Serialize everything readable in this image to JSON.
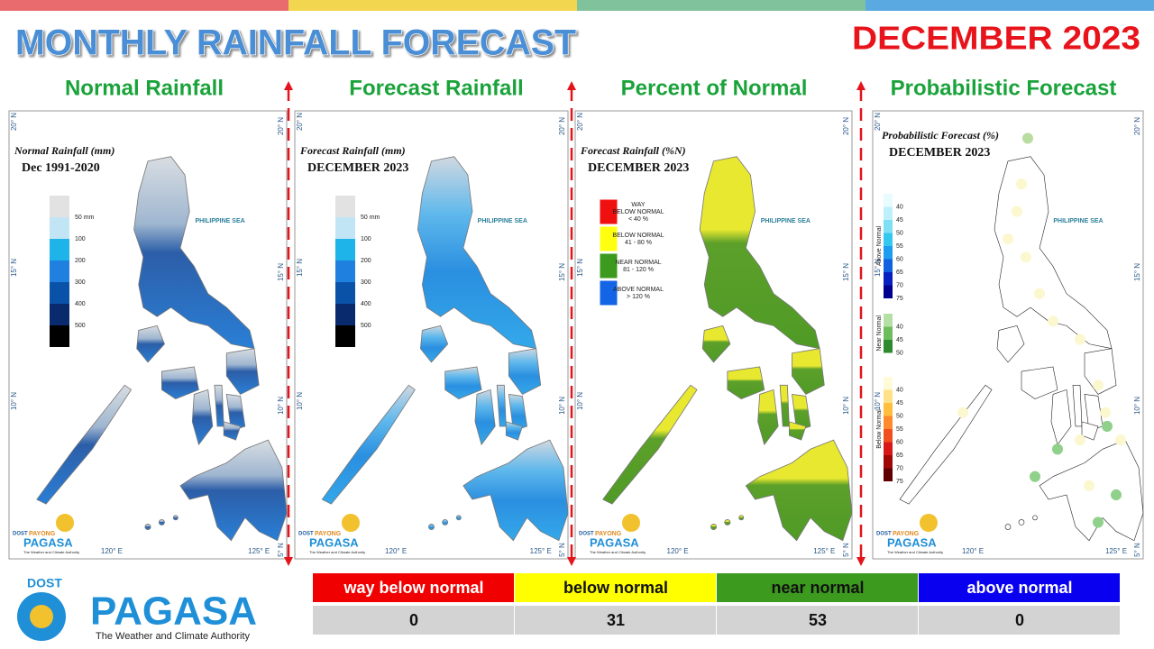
{
  "header": {
    "title": "MONTHLY RAINFALL FORECAST",
    "period": "DECEMBER 2023"
  },
  "panels": [
    {
      "heading": "Normal Rainfall",
      "map_title": "Normal Rainfall (mm)",
      "map_subtitle": "Dec 1991-2020",
      "legend": [
        "50 mm",
        "100",
        "200",
        "300",
        "400",
        "500"
      ]
    },
    {
      "heading": "Forecast Rainfall",
      "map_title": "Forecast Rainfall (mm)",
      "map_subtitle": "DECEMBER 2023",
      "legend": [
        "50 mm",
        "100",
        "200",
        "300",
        "400",
        "500"
      ]
    },
    {
      "heading": "Percent of Normal",
      "map_title": "Forecast Rainfall (%N)",
      "map_subtitle": "DECEMBER 2023",
      "legend": [
        [
          "WAY",
          "BELOW NORMAL",
          "< 40 %"
        ],
        [
          "BELOW NORMAL",
          "41 - 80 %"
        ],
        [
          "NEAR NORMAL",
          "81 - 120 %"
        ],
        [
          "ABOVE NORMAL",
          "> 120 %"
        ]
      ]
    },
    {
      "heading": "Probabilistic Forecast",
      "map_title": "Probabilistic Forecast (%)",
      "map_subtitle": "DECEMBER 2023",
      "legend_groups": [
        {
          "name": "Above Normal",
          "levels": [
            "40",
            "45",
            "50",
            "55",
            "60",
            "65",
            "70",
            "75"
          ]
        },
        {
          "name": "Near Normal",
          "levels": [
            "40",
            "45",
            "50"
          ]
        },
        {
          "name": "Below Normal",
          "levels": [
            "40",
            "45",
            "50",
            "55",
            "60",
            "65",
            "70",
            "75"
          ]
        }
      ]
    }
  ],
  "map_labels": {
    "sea": "PHILIPPINE SEA",
    "lat": [
      "20° N",
      "15° N",
      "10° N",
      "5° N"
    ],
    "lon": [
      "120° E",
      "125° E"
    ]
  },
  "logo": {
    "agency": "DOST",
    "program": "PAYONG",
    "brand": "PAGASA",
    "tagline": "The Weather and Climate Authority"
  },
  "table": {
    "headers": [
      "way below normal",
      "below normal",
      "near normal",
      "above normal"
    ],
    "rows": [
      [
        0,
        31,
        53,
        0
      ]
    ]
  }
}
